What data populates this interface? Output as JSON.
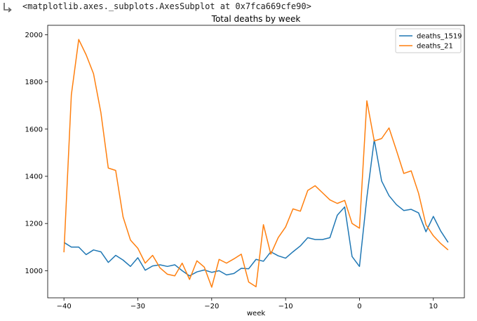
{
  "output": {
    "repr_text": "<matplotlib.axes._subplots.AxesSubplot at 0x7fca669cfe90>",
    "icon": "output-arrow-icon"
  },
  "chart_data": {
    "type": "line",
    "title": "Total deaths by week",
    "xlabel": "week",
    "ylabel": "",
    "xlim": [
      -42.2,
      14.2
    ],
    "ylim": [
      885,
      2040
    ],
    "xticks": [
      -40,
      -30,
      -20,
      -10,
      0,
      10
    ],
    "yticks": [
      1000,
      1200,
      1400,
      1600,
      1800,
      2000
    ],
    "grid": false,
    "legend_position": "top-right",
    "x": [
      -40,
      -39,
      -38,
      -37,
      -36,
      -35,
      -34,
      -33,
      -32,
      -31,
      -30,
      -29,
      -28,
      -27,
      -26,
      -25,
      -24,
      -23,
      -22,
      -21,
      -20,
      -19,
      -18,
      -17,
      -16,
      -15,
      -14,
      -13,
      -12,
      -11,
      -10,
      -9,
      -8,
      -7,
      -6,
      -5,
      -4,
      -3,
      -2,
      -1,
      0,
      1,
      2,
      3,
      4,
      5,
      6,
      7,
      8,
      9,
      10,
      11,
      12
    ],
    "series": [
      {
        "name": "deaths_1519",
        "color": "#1f77b4",
        "values": [
          1120,
          1100,
          1100,
          1068,
          1088,
          1080,
          1035,
          1065,
          1045,
          1018,
          1055,
          1002,
          1020,
          1025,
          1018,
          1025,
          1000,
          978,
          995,
          1003,
          993,
          1000,
          982,
          988,
          1010,
          1008,
          1048,
          1040,
          1080,
          1063,
          1053,
          1080,
          1105,
          1140,
          1132,
          1132,
          1140,
          1235,
          1270,
          1060,
          1018,
          1310,
          1555,
          1380,
          1318,
          1280,
          1255,
          1260,
          1245,
          1165,
          1230,
          1168,
          1120
        ]
      },
      {
        "name": "deaths_21",
        "color": "#ff7f0e",
        "values": [
          1078,
          1745,
          1980,
          1915,
          1835,
          1670,
          1435,
          1425,
          1228,
          1130,
          1095,
          1032,
          1065,
          1012,
          985,
          978,
          1032,
          963,
          1042,
          1015,
          930,
          1048,
          1032,
          1050,
          1070,
          952,
          932,
          1195,
          1070,
          1140,
          1185,
          1262,
          1252,
          1340,
          1360,
          1330,
          1300,
          1285,
          1298,
          1200,
          1180,
          1720,
          1550,
          1560,
          1605,
          1510,
          1412,
          1423,
          1328,
          1195,
          1148,
          1115,
          1088
        ]
      }
    ]
  }
}
